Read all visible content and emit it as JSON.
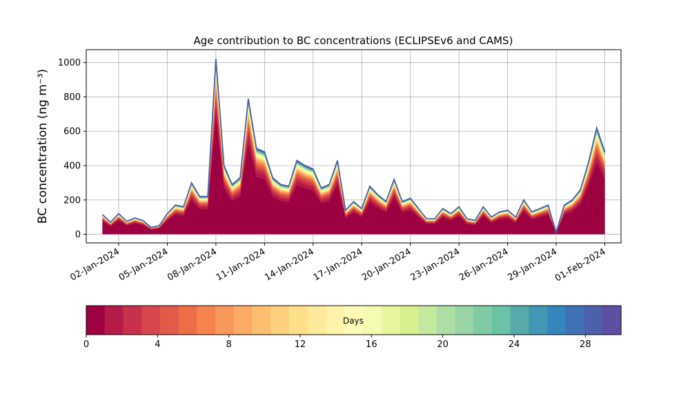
{
  "chart_data": {
    "type": "area",
    "title": "Age contribution to BC concentrations (ECLIPSEv6 and CAMS)",
    "xlabel": "",
    "ylabel": "BC concentration (ng m⁻³)",
    "ylim": [
      -50,
      1075
    ],
    "xlim": [
      "2023-12-31T00:00",
      "2024-02-02T00:00"
    ],
    "yticks": [
      0,
      200,
      400,
      600,
      800,
      1000
    ],
    "xticks": [
      "02-Jan-2024",
      "05-Jan-2024",
      "08-Jan-2024",
      "11-Jan-2024",
      "14-Jan-2024",
      "17-Jan-2024",
      "20-Jan-2024",
      "23-Jan-2024",
      "26-Jan-2024",
      "29-Jan-2024",
      "01-Feb-2024"
    ],
    "grid": true,
    "series_description": "Stacked contributions by emission age (0-30 days); total concentration shown",
    "x": [
      "2024-01-01T00:00",
      "2024-01-01T12:00",
      "2024-01-02T00:00",
      "2024-01-02T12:00",
      "2024-01-03T00:00",
      "2024-01-03T12:00",
      "2024-01-04T00:00",
      "2024-01-04T12:00",
      "2024-01-05T00:00",
      "2024-01-05T12:00",
      "2024-01-06T00:00",
      "2024-01-06T12:00",
      "2024-01-07T00:00",
      "2024-01-07T12:00",
      "2024-01-08T00:00",
      "2024-01-08T12:00",
      "2024-01-09T00:00",
      "2024-01-09T12:00",
      "2024-01-10T00:00",
      "2024-01-10T12:00",
      "2024-01-11T00:00",
      "2024-01-11T12:00",
      "2024-01-12T00:00",
      "2024-01-12T12:00",
      "2024-01-13T00:00",
      "2024-01-13T12:00",
      "2024-01-14T00:00",
      "2024-01-14T12:00",
      "2024-01-15T00:00",
      "2024-01-15T12:00",
      "2024-01-16T00:00",
      "2024-01-16T12:00",
      "2024-01-17T00:00",
      "2024-01-17T12:00",
      "2024-01-18T00:00",
      "2024-01-18T12:00",
      "2024-01-19T00:00",
      "2024-01-19T12:00",
      "2024-01-20T00:00",
      "2024-01-20T12:00",
      "2024-01-21T00:00",
      "2024-01-21T12:00",
      "2024-01-22T00:00",
      "2024-01-22T12:00",
      "2024-01-23T00:00",
      "2024-01-23T12:00",
      "2024-01-24T00:00",
      "2024-01-24T12:00",
      "2024-01-25T00:00",
      "2024-01-25T12:00",
      "2024-01-26T00:00",
      "2024-01-26T12:00",
      "2024-01-27T00:00",
      "2024-01-27T12:00",
      "2024-01-28T00:00",
      "2024-01-28T12:00",
      "2024-01-29T00:00",
      "2024-01-29T12:00",
      "2024-01-30T00:00",
      "2024-01-30T12:00",
      "2024-01-31T00:00",
      "2024-01-31T12:00",
      "2024-02-01T00:00"
    ],
    "total": [
      115,
      70,
      120,
      75,
      95,
      80,
      40,
      50,
      120,
      170,
      160,
      300,
      220,
      220,
      1020,
      400,
      290,
      330,
      790,
      500,
      480,
      330,
      290,
      280,
      430,
      400,
      380,
      270,
      290,
      430,
      140,
      190,
      150,
      280,
      230,
      190,
      320,
      190,
      210,
      150,
      90,
      90,
      150,
      120,
      160,
      90,
      80,
      160,
      100,
      130,
      140,
      100,
      200,
      130,
      150,
      170,
      10,
      170,
      200,
      260,
      420,
      620,
      480
    ],
    "colorbar": {
      "label": "Days",
      "min": 0,
      "max": 30,
      "ticks": [
        0,
        4,
        8,
        12,
        16,
        20,
        24,
        28
      ],
      "colors": [
        "#9e0142",
        "#b51b48",
        "#c7314b",
        "#d8464d",
        "#e35a49",
        "#ed6e46",
        "#f6824f",
        "#f9985b",
        "#fbab66",
        "#fdbf6f",
        "#fdd17e",
        "#fee08b",
        "#feea9a",
        "#fff2a9",
        "#fffcb9",
        "#f6fbb2",
        "#eaf69d",
        "#d9f08e",
        "#c4e89e",
        "#aedea3",
        "#99d5a4",
        "#80cba4",
        "#6bc2a5",
        "#57aaa9",
        "#4298b4",
        "#3486bb",
        "#3f72b4",
        "#4d61aa",
        "#5e4fa2"
      ]
    }
  }
}
